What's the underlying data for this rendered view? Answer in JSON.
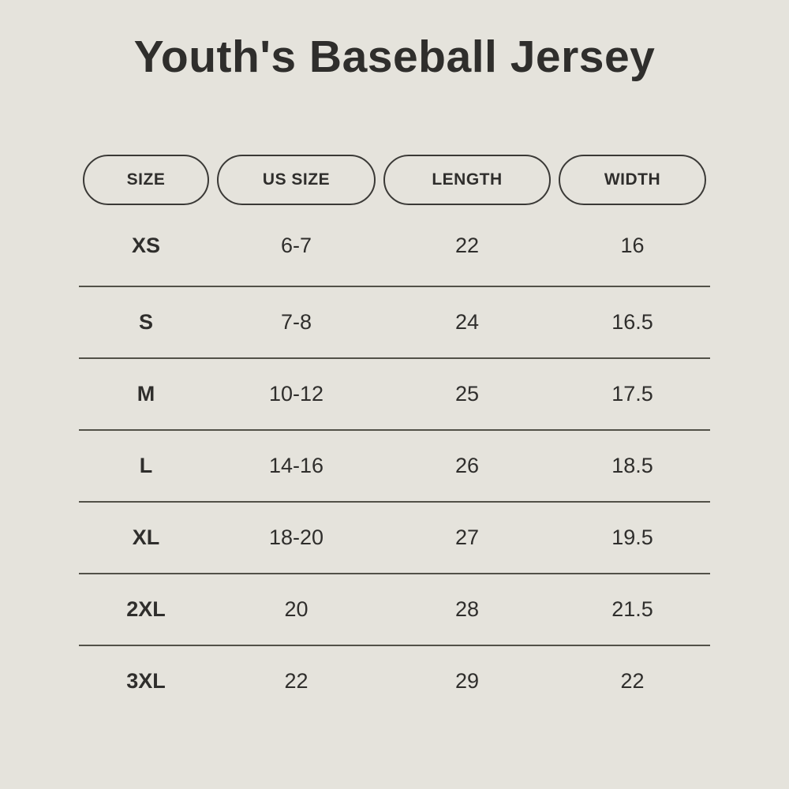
{
  "page": {
    "background_color": "#e5e3dc",
    "text_color": "#2f2e2c",
    "divider_color": "#525148",
    "pill_border_color": "#3a3936"
  },
  "chart_data": {
    "type": "table",
    "title": "Youth's Baseball Jersey",
    "columns": [
      "SIZE",
      "US SIZE",
      "LENGTH",
      "WIDTH"
    ],
    "rows": [
      [
        "XS",
        "6-7",
        "22",
        "16"
      ],
      [
        "S",
        "7-8",
        "24",
        "16.5"
      ],
      [
        "M",
        "10-12",
        "25",
        "17.5"
      ],
      [
        "L",
        "14-16",
        "26",
        "18.5"
      ],
      [
        "XL",
        "18-20",
        "27",
        "19.5"
      ],
      [
        "2XL",
        "20",
        "28",
        "21.5"
      ],
      [
        "3XL",
        "22",
        "29",
        "22"
      ]
    ]
  }
}
